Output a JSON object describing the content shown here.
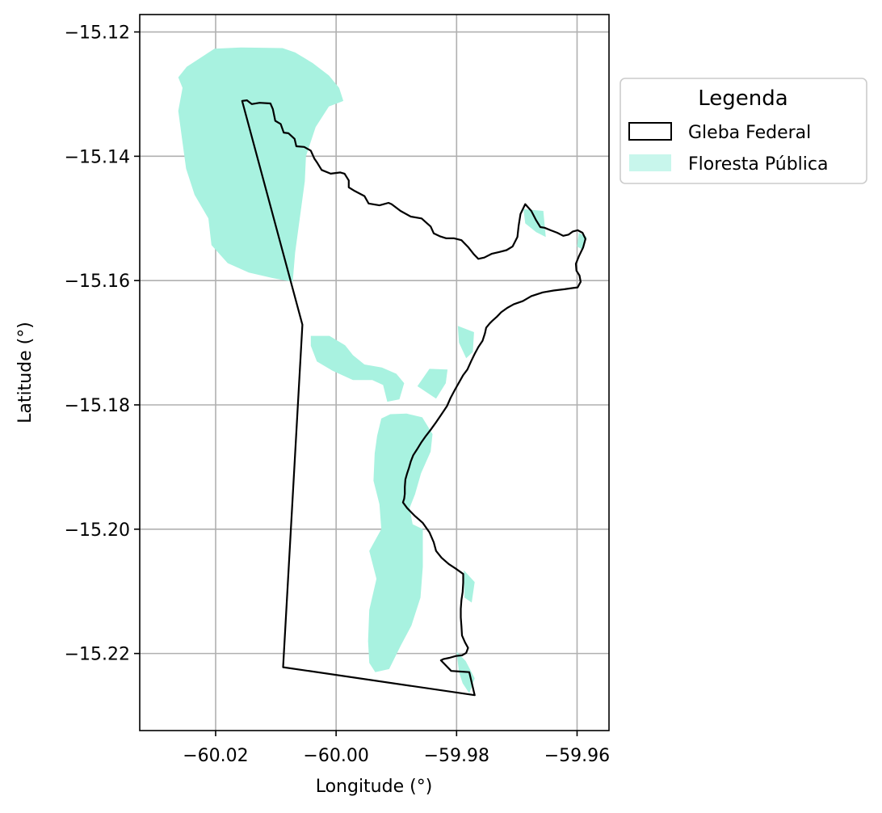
{
  "chart_data": {
    "type": "map",
    "xlabel": "Longitude (°)",
    "ylabel": "Latitude (°)",
    "xlim": [
      -60.0326,
      -59.9547
    ],
    "ylim": [
      -15.2324,
      -15.1172
    ],
    "xticks": [
      -60.02,
      -60.0,
      -59.98,
      -59.96
    ],
    "xtick_labels": [
      "−60.02",
      "−60.00",
      "−59.98",
      "−59.96"
    ],
    "yticks": [
      -15.12,
      -15.14,
      -15.16,
      -15.18,
      -15.2,
      -15.22
    ],
    "ytick_labels": [
      "−15.12",
      "−15.14",
      "−15.16",
      "−15.18",
      "−15.20",
      "−15.22"
    ],
    "grid": true,
    "legend": {
      "title": "Legenda",
      "placement": "outside-right-top",
      "entries": [
        {
          "label": "Gleba Federal",
          "style": "outline"
        },
        {
          "label": "Floresta Pública",
          "style": "fill"
        }
      ]
    },
    "colors": {
      "gleba_edge": "#000000",
      "floresta_fill": "#a8f2e0",
      "floresta_legend": "#c8f6ec",
      "grid": "#b0b0b0"
    },
    "gleba_federal": [
      [
        -60.0156,
        -15.1311
      ],
      [
        -60.0148,
        -15.131
      ],
      [
        -60.014,
        -15.1316
      ],
      [
        -60.0127,
        -15.1314
      ],
      [
        -60.0109,
        -15.1315
      ],
      [
        -60.0105,
        -15.1324
      ],
      [
        -60.0101,
        -15.1343
      ],
      [
        -60.0092,
        -15.1348
      ],
      [
        -60.0087,
        -15.1362
      ],
      [
        -60.0079,
        -15.1363
      ],
      [
        -60.0069,
        -15.1372
      ],
      [
        -60.0066,
        -15.1384
      ],
      [
        -60.0053,
        -15.1385
      ],
      [
        -60.0042,
        -15.1391
      ],
      [
        -60.0036,
        -15.1404
      ],
      [
        -60.0031,
        -15.1411
      ],
      [
        -60.0024,
        -15.1422
      ],
      [
        -60.0009,
        -15.1428
      ],
      [
        -59.9993,
        -15.1426
      ],
      [
        -59.9986,
        -15.1428
      ],
      [
        -59.9979,
        -15.1439
      ],
      [
        -59.9979,
        -15.145
      ],
      [
        -59.9969,
        -15.1456
      ],
      [
        -59.9953,
        -15.1464
      ],
      [
        -59.9946,
        -15.1476
      ],
      [
        -59.9928,
        -15.1479
      ],
      [
        -59.9913,
        -15.1475
      ],
      [
        -59.9908,
        -15.1477
      ],
      [
        -59.9893,
        -15.1488
      ],
      [
        -59.9876,
        -15.1497
      ],
      [
        -59.9858,
        -15.15
      ],
      [
        -59.9843,
        -15.1513
      ],
      [
        -59.9838,
        -15.1524
      ],
      [
        -59.9827,
        -15.1529
      ],
      [
        -59.9817,
        -15.1532
      ],
      [
        -59.9804,
        -15.1532
      ],
      [
        -59.9792,
        -15.1535
      ],
      [
        -59.9781,
        -15.1546
      ],
      [
        -59.9771,
        -15.1558
      ],
      [
        -59.9764,
        -15.1565
      ],
      [
        -59.9754,
        -15.1563
      ],
      [
        -59.9742,
        -15.1557
      ],
      [
        -59.9729,
        -15.1554
      ],
      [
        -59.9717,
        -15.1551
      ],
      [
        -59.9707,
        -15.1545
      ],
      [
        -59.9699,
        -15.153
      ],
      [
        -59.9697,
        -15.1512
      ],
      [
        -59.9694,
        -15.1493
      ],
      [
        -59.9686,
        -15.1477
      ],
      [
        -59.9676,
        -15.1488
      ],
      [
        -59.9668,
        -15.1503
      ],
      [
        -59.9661,
        -15.1514
      ],
      [
        -59.9654,
        -15.1515
      ],
      [
        -59.9644,
        -15.1519
      ],
      [
        -59.9633,
        -15.1523
      ],
      [
        -59.9623,
        -15.1528
      ],
      [
        -59.9614,
        -15.1526
      ],
      [
        -59.9607,
        -15.1521
      ],
      [
        -59.9599,
        -15.1519
      ],
      [
        -59.9591,
        -15.1523
      ],
      [
        -59.9586,
        -15.1533
      ],
      [
        -59.959,
        -15.1547
      ],
      [
        -59.9597,
        -15.1561
      ],
      [
        -59.9602,
        -15.1573
      ],
      [
        -59.9601,
        -15.1584
      ],
      [
        -59.9596,
        -15.1592
      ],
      [
        -59.9594,
        -15.1602
      ],
      [
        -59.9599,
        -15.1611
      ],
      [
        -59.9607,
        -15.1612
      ],
      [
        -59.9621,
        -15.1614
      ],
      [
        -59.9639,
        -15.1616
      ],
      [
        -59.9657,
        -15.1619
      ],
      [
        -59.9676,
        -15.1625
      ],
      [
        -59.969,
        -15.1633
      ],
      [
        -59.9705,
        -15.1638
      ],
      [
        -59.9716,
        -15.1644
      ],
      [
        -59.9726,
        -15.1651
      ],
      [
        -59.9733,
        -15.1658
      ],
      [
        -59.974,
        -15.1664
      ],
      [
        -59.9745,
        -15.1669
      ],
      [
        -59.9751,
        -15.1676
      ],
      [
        -59.9753,
        -15.1685
      ],
      [
        -59.9757,
        -15.1697
      ],
      [
        -59.9764,
        -15.1707
      ],
      [
        -59.977,
        -15.1718
      ],
      [
        -59.9776,
        -15.173
      ],
      [
        -59.9782,
        -15.1743
      ],
      [
        -59.9789,
        -15.1752
      ],
      [
        -59.9796,
        -15.1764
      ],
      [
        -59.9803,
        -15.1776
      ],
      [
        -59.981,
        -15.1789
      ],
      [
        -59.9816,
        -15.1802
      ],
      [
        -59.9825,
        -15.1815
      ],
      [
        -59.9834,
        -15.1828
      ],
      [
        -59.9843,
        -15.184
      ],
      [
        -59.9851,
        -15.185
      ],
      [
        -59.9859,
        -15.1861
      ],
      [
        -59.9866,
        -15.1872
      ],
      [
        -59.9872,
        -15.1881
      ],
      [
        -59.9876,
        -15.1891
      ],
      [
        -59.9879,
        -15.1901
      ],
      [
        -59.9882,
        -15.191
      ],
      [
        -59.9885,
        -15.192
      ],
      [
        -59.9886,
        -15.1932
      ],
      [
        -59.9886,
        -15.1943
      ],
      [
        -59.9887,
        -15.1951
      ],
      [
        -59.9889,
        -15.1957
      ],
      [
        -59.9882,
        -15.1966
      ],
      [
        -59.987,
        -15.1978
      ],
      [
        -59.9856,
        -15.199
      ],
      [
        -59.9845,
        -15.2005
      ],
      [
        -59.9838,
        -15.2021
      ],
      [
        -59.9834,
        -15.2035
      ],
      [
        -59.9825,
        -15.2046
      ],
      [
        -59.9813,
        -15.2056
      ],
      [
        -59.9802,
        -15.2063
      ],
      [
        -59.9789,
        -15.2072
      ],
      [
        -59.9789,
        -15.2086
      ],
      [
        -59.979,
        -15.2101
      ],
      [
        -59.9792,
        -15.2114
      ],
      [
        -59.9793,
        -15.2128
      ],
      [
        -59.9793,
        -15.2142
      ],
      [
        -59.9792,
        -15.2156
      ],
      [
        -59.9791,
        -15.2171
      ],
      [
        -59.9786,
        -15.2182
      ],
      [
        -59.9781,
        -15.2191
      ],
      [
        -59.9784,
        -15.2199
      ],
      [
        -59.9791,
        -15.2203
      ],
      [
        -59.9801,
        -15.2204
      ],
      [
        -59.9812,
        -15.2207
      ],
      [
        -59.9822,
        -15.2209
      ],
      [
        -59.9826,
        -15.2211
      ],
      [
        -59.9817,
        -15.222
      ],
      [
        -59.9809,
        -15.2228
      ],
      [
        -59.9796,
        -15.2229
      ],
      [
        -59.9779,
        -15.223
      ],
      [
        -59.977,
        -15.2267
      ],
      [
        -60.0088,
        -15.2222
      ],
      [
        -60.0056,
        -15.1671
      ],
      [
        -60.0156,
        -15.1311
      ]
    ],
    "floresta_publica": [
      [
        [
          -60.0089,
          -15.1226
        ],
        [
          -60.0068,
          -15.1233
        ],
        [
          -60.0039,
          -15.125
        ],
        [
          -60.0012,
          -15.127
        ],
        [
          -59.9995,
          -15.129
        ],
        [
          -59.9988,
          -15.1311
        ],
        [
          -60.0012,
          -15.132
        ],
        [
          -60.0034,
          -15.1353
        ],
        [
          -60.005,
          -15.14
        ],
        [
          -60.0052,
          -15.144
        ],
        [
          -60.0068,
          -15.1555
        ],
        [
          -60.0072,
          -15.1602
        ],
        [
          -60.0105,
          -15.1596
        ],
        [
          -60.0145,
          -15.1587
        ],
        [
          -60.018,
          -15.1572
        ],
        [
          -60.0207,
          -15.1543
        ],
        [
          -60.0212,
          -15.15
        ],
        [
          -60.0235,
          -15.1462
        ],
        [
          -60.0249,
          -15.142
        ],
        [
          -60.0255,
          -15.1378
        ],
        [
          -60.0262,
          -15.1327
        ],
        [
          -60.0255,
          -15.129
        ],
        [
          -60.0262,
          -15.1273
        ],
        [
          -60.0248,
          -15.1256
        ],
        [
          -60.0202,
          -15.1227
        ],
        [
          -60.0158,
          -15.1225
        ]
      ],
      [
        [
          -60.0042,
          -15.1689
        ],
        [
          -60.0011,
          -15.1689
        ],
        [
          -59.9985,
          -15.1704
        ],
        [
          -59.9972,
          -15.172
        ],
        [
          -59.9953,
          -15.1735
        ],
        [
          -59.9924,
          -15.174
        ],
        [
          -59.99,
          -15.175
        ],
        [
          -59.9887,
          -15.1765
        ],
        [
          -59.9895,
          -15.1791
        ],
        [
          -59.9915,
          -15.1795
        ],
        [
          -59.9922,
          -15.1768
        ],
        [
          -59.994,
          -15.176
        ],
        [
          -59.9972,
          -15.176
        ],
        [
          -60.0006,
          -15.1745
        ],
        [
          -60.0032,
          -15.173
        ],
        [
          -60.0042,
          -15.1705
        ]
      ],
      [
        [
          -59.991,
          -15.1815
        ],
        [
          -59.9883,
          -15.1814
        ],
        [
          -59.9857,
          -15.182
        ],
        [
          -59.984,
          -15.1847
        ],
        [
          -59.9843,
          -15.1875
        ],
        [
          -59.9859,
          -15.191
        ],
        [
          -59.9869,
          -15.1944
        ],
        [
          -59.9878,
          -15.1966
        ],
        [
          -59.9873,
          -15.1992
        ],
        [
          -59.9856,
          -15.2
        ],
        [
          -59.9856,
          -15.206
        ],
        [
          -59.986,
          -15.211
        ],
        [
          -59.9875,
          -15.2155
        ],
        [
          -59.9893,
          -15.2188
        ],
        [
          -59.9912,
          -15.2225
        ],
        [
          -59.9935,
          -15.223
        ],
        [
          -59.9945,
          -15.2215
        ],
        [
          -59.9947,
          -15.218
        ],
        [
          -59.9945,
          -15.213
        ],
        [
          -59.9933,
          -15.208
        ],
        [
          -59.9945,
          -15.2035
        ],
        [
          -59.9925,
          -15.2
        ],
        [
          -59.9928,
          -15.196
        ],
        [
          -59.9938,
          -15.1922
        ],
        [
          -59.9936,
          -15.1878
        ],
        [
          -59.9932,
          -15.185
        ],
        [
          -59.9925,
          -15.1822
        ]
      ],
      [
        [
          -59.9834,
          -15.179
        ],
        [
          -59.9865,
          -15.177
        ],
        [
          -59.9845,
          -15.1742
        ],
        [
          -59.9815,
          -15.1743
        ],
        [
          -59.9818,
          -15.1765
        ]
      ],
      [
        [
          -59.9798,
          -15.1673
        ],
        [
          -59.9771,
          -15.1683
        ],
        [
          -59.9773,
          -15.1715
        ],
        [
          -59.9784,
          -15.1725
        ],
        [
          -59.9796,
          -15.17
        ]
      ],
      [
        [
          -59.9689,
          -15.1485
        ],
        [
          -59.9656,
          -15.1488
        ],
        [
          -59.9652,
          -15.153
        ],
        [
          -59.9668,
          -15.1522
        ],
        [
          -59.9686,
          -15.1508
        ]
      ],
      [
        [
          -59.9597,
          -15.1523
        ],
        [
          -59.9584,
          -15.153
        ],
        [
          -59.959,
          -15.1551
        ],
        [
          -59.96,
          -15.1545
        ]
      ],
      [
        [
          -59.98,
          -15.2197
        ],
        [
          -59.9785,
          -15.2212
        ],
        [
          -59.977,
          -15.224
        ],
        [
          -59.9779,
          -15.2264
        ],
        [
          -59.979,
          -15.2248
        ],
        [
          -59.9796,
          -15.223
        ]
      ],
      [
        [
          -59.9788,
          -15.2066
        ],
        [
          -59.977,
          -15.2085
        ],
        [
          -59.9775,
          -15.2118
        ],
        [
          -59.9787,
          -15.211
        ]
      ]
    ]
  }
}
